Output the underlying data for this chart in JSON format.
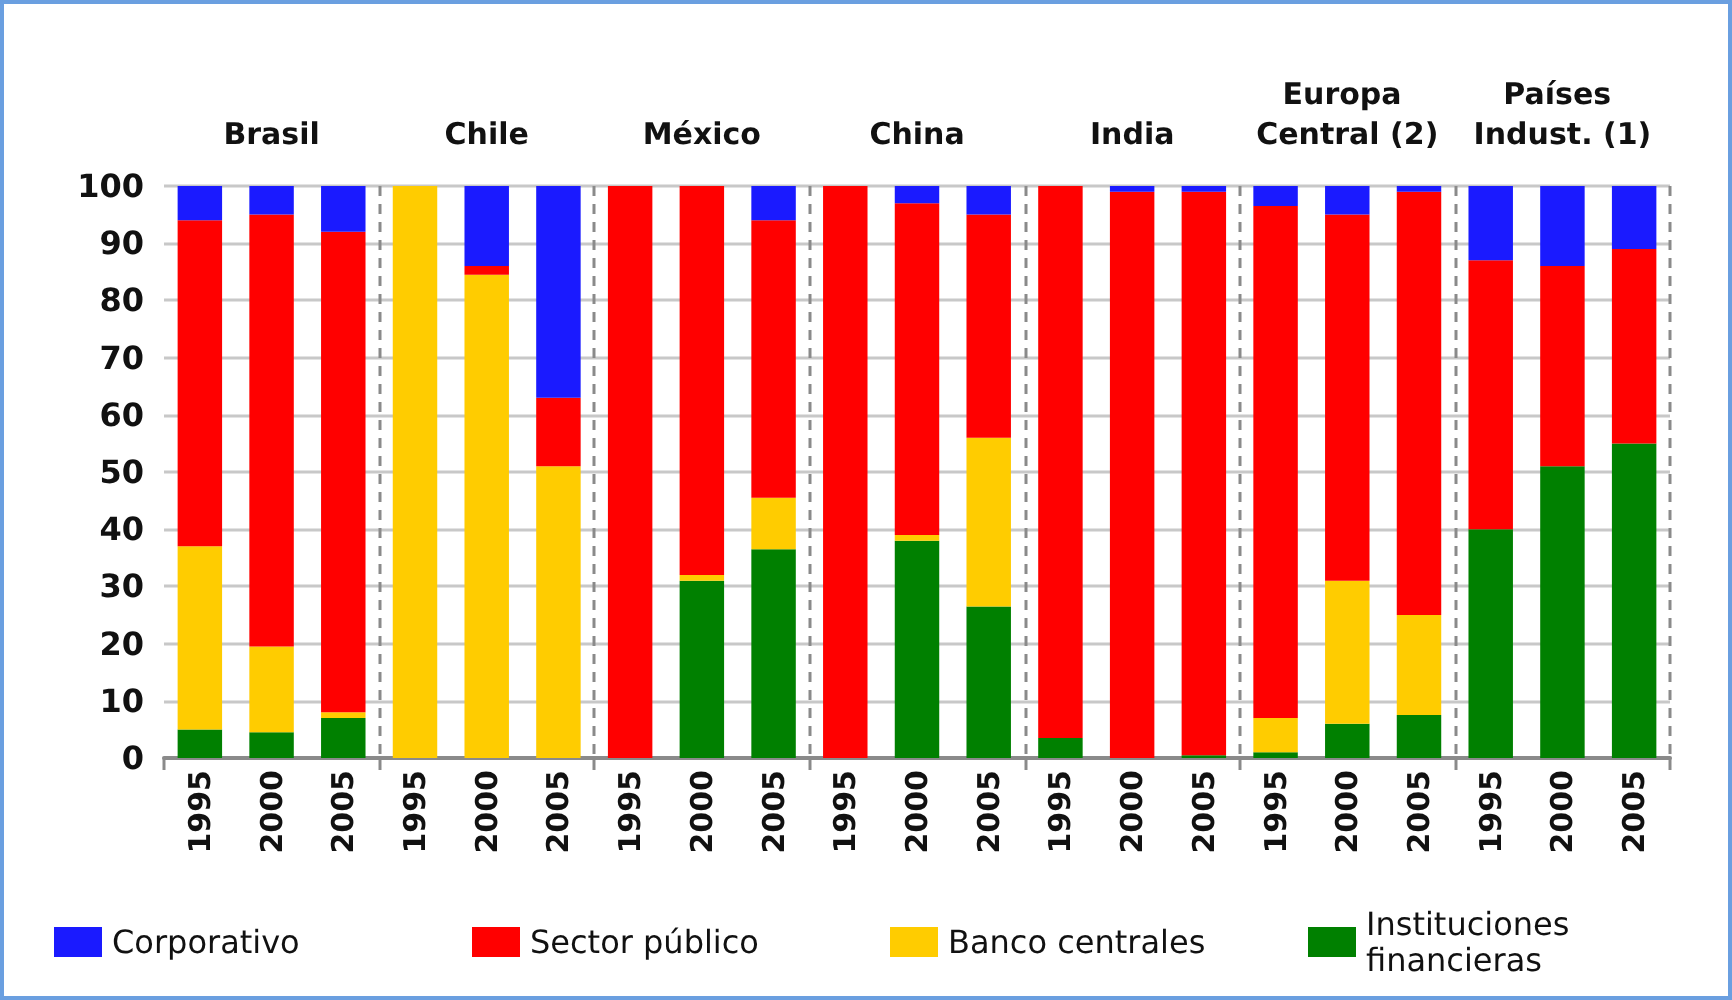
{
  "chart_data": {
    "type": "bar",
    "stacked": true,
    "categories": [
      "1995",
      "2000",
      "2005",
      "1995",
      "2000",
      "2005",
      "1995",
      "2000",
      "2005",
      "1995",
      "2000",
      "2005",
      "1995",
      "2000",
      "2005",
      "1995",
      "2000",
      "2005",
      "1995",
      "2000",
      "2005"
    ],
    "annotations": [
      "Brasil",
      "Chile",
      "México",
      "China",
      "India",
      "Europa Central (2)",
      "Países Indust. (1)"
    ],
    "series": [
      {
        "name": "Instituciones financieras",
        "color": "#008000",
        "values": [
          5,
          4.5,
          7,
          0,
          0,
          0,
          0,
          31,
          36.5,
          0,
          38,
          26.5,
          3.5,
          0,
          0.5,
          1,
          6,
          7.5,
          40,
          51,
          55
        ]
      },
      {
        "name": "Banco centrales",
        "color": "#ffcc00",
        "values": [
          32,
          15,
          1,
          100,
          84.5,
          51,
          0,
          1,
          9,
          0,
          1,
          29.5,
          0,
          0,
          0,
          6,
          25,
          17.5,
          0,
          0,
          0
        ]
      },
      {
        "name": "Sector público",
        "color": "#ff0000",
        "values": [
          57,
          75.5,
          84,
          0,
          1.5,
          12,
          100,
          68,
          48.5,
          100,
          58,
          39,
          96.5,
          99,
          98.5,
          89.5,
          64,
          74,
          47,
          35,
          34
        ]
      },
      {
        "name": "Corporativo",
        "color": "#1a1aff",
        "values": [
          6,
          5,
          8,
          0,
          14,
          37,
          0,
          0,
          6,
          0,
          3,
          5,
          0,
          1,
          1,
          3.5,
          5,
          1,
          13,
          14,
          11
        ]
      }
    ],
    "ylim": [
      0,
      100
    ],
    "yticks": [
      0,
      10,
      20,
      30,
      40,
      50,
      60,
      70,
      80,
      90,
      100
    ],
    "grid": true,
    "legend": "bottom"
  }
}
